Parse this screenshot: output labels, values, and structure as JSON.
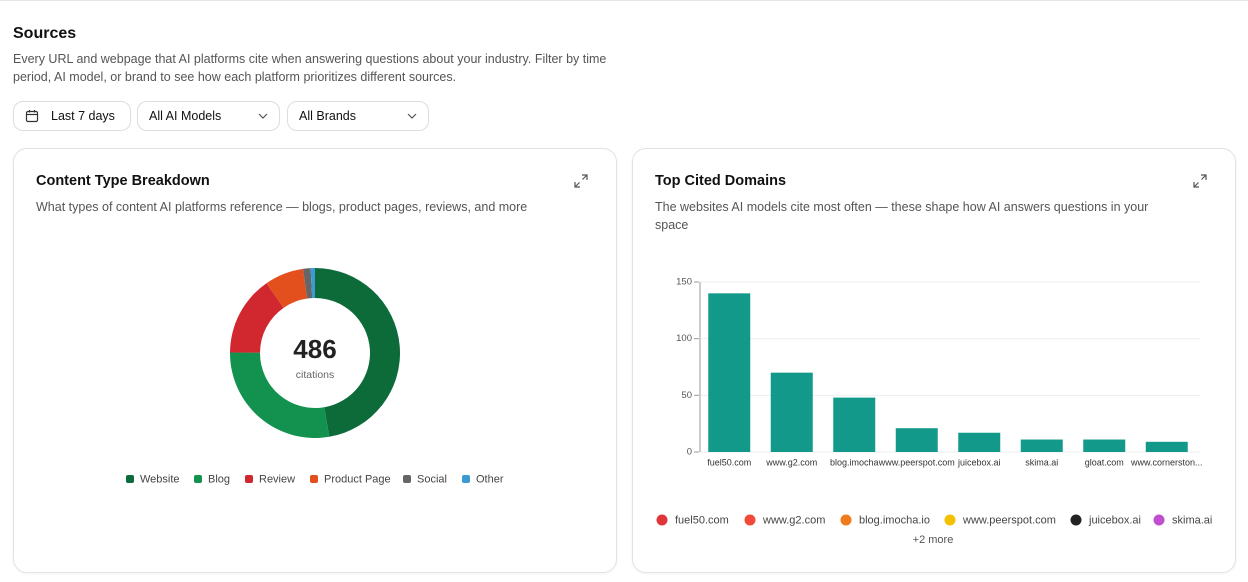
{
  "header": {
    "title": "Sources",
    "description": "Every URL and webpage that AI platforms cite when answering questions about your industry. Filter by time period, AI model, or brand to see how each platform prioritizes different sources."
  },
  "filters": [
    "Last 7 days",
    "All AI Models",
    "All Brands"
  ],
  "chart_data": [
    {
      "type": "donut",
      "title": "Content Type Breakdown",
      "subtitle": "What types of content AI platforms reference — blogs, product pages, reviews, and more",
      "total": 486,
      "center_label": "citations",
      "categories": [
        "Website",
        "Blog",
        "Review",
        "Product Page",
        "Social",
        "Other"
      ],
      "values": [
        230,
        135,
        74,
        36,
        7,
        4
      ],
      "colors": [
        "#0d6b3a",
        "#13924f",
        "#d1282f",
        "#e4501d",
        "#666666",
        "#3a9bd5"
      ]
    },
    {
      "type": "bar",
      "title": "Top Cited Domains",
      "subtitle": "The websites AI models cite most often — these shape how AI answers questions in your space",
      "categories": [
        "fuel50.com",
        "www.g2.com",
        "blog.imocha",
        "www.peerspot.com",
        "juicebox.ai",
        "skima.ai",
        "gloat.com",
        "www.cornerston..."
      ],
      "values": [
        140,
        70,
        48,
        21,
        17,
        11,
        11,
        9
      ],
      "color": "#13998a",
      "ylim": [
        0,
        150
      ],
      "yticks": [
        0,
        50,
        100,
        150
      ],
      "grid": true,
      "legend": [
        "fuel50.com",
        "www.g2.com",
        "blog.imocha.io",
        "www.peerspot.com",
        "juicebox.ai",
        "skima.ai"
      ],
      "more": "+2 more"
    }
  ]
}
